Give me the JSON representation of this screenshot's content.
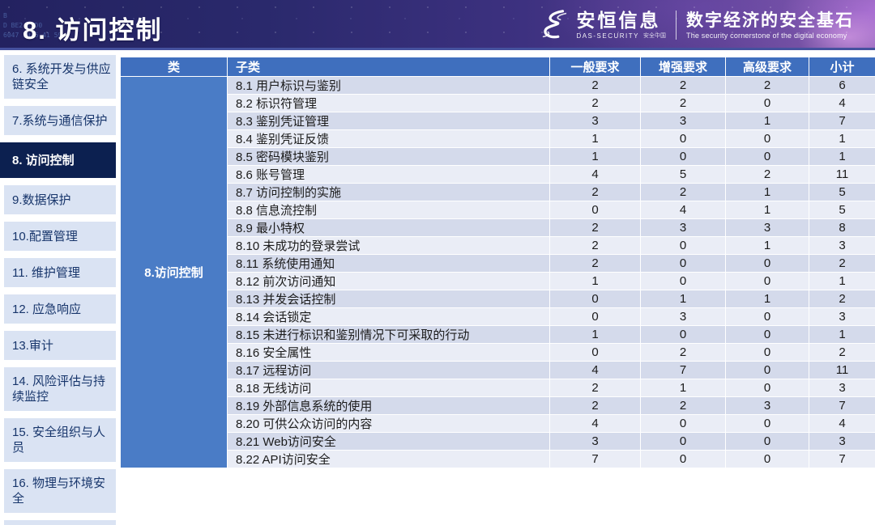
{
  "header": {
    "title": "8. 访问控制",
    "texture": {
      "line1": "B",
      "line2": "D BE2 F3D0",
      "line3": "6047 5926 41 59"
    },
    "logo": {
      "name_cn": "安恒信息",
      "name_en": "DAS-SECURITY",
      "seal": "安全中国",
      "tagline_cn": "数字经济的安全基石",
      "tagline_en": "The security cornerstone of the digital economy"
    }
  },
  "sidebar": {
    "items": [
      {
        "label": "6. 系统开发与供应链安全",
        "active": false
      },
      {
        "label": "7.系统与通信保护",
        "active": false
      },
      {
        "label": "8. 访问控制",
        "active": true
      },
      {
        "label": "9.数据保护",
        "active": false
      },
      {
        "label": "10.配置管理",
        "active": false
      },
      {
        "label": "11. 维护管理",
        "active": false
      },
      {
        "label": "12. 应急响应",
        "active": false
      },
      {
        "label": "13.审计",
        "active": false
      },
      {
        "label": "14. 风险评估与持续监控",
        "active": false
      },
      {
        "label": "15. 安全组织与人员",
        "active": false
      },
      {
        "label": "16. 物理与环境安全",
        "active": false
      }
    ]
  },
  "table": {
    "columns": [
      "类",
      "子类",
      "一般要求",
      "增强要求",
      "高级要求",
      "小计"
    ],
    "category": "8.访问控制",
    "rows": [
      {
        "name": "8.1 用户标识与鉴别",
        "general": 2,
        "enhanced": 2,
        "advanced": 2,
        "subtotal": 6
      },
      {
        "name": "8.2 标识符管理",
        "general": 2,
        "enhanced": 2,
        "advanced": 0,
        "subtotal": 4
      },
      {
        "name": "8.3 鉴别凭证管理",
        "general": 3,
        "enhanced": 3,
        "advanced": 1,
        "subtotal": 7
      },
      {
        "name": "8.4 鉴别凭证反馈",
        "general": 1,
        "enhanced": 0,
        "advanced": 0,
        "subtotal": 1
      },
      {
        "name": "8.5 密码模块鉴别",
        "general": 1,
        "enhanced": 0,
        "advanced": 0,
        "subtotal": 1
      },
      {
        "name": "8.6 账号管理",
        "general": 4,
        "enhanced": 5,
        "advanced": 2,
        "subtotal": 11
      },
      {
        "name": "8.7 访问控制的实施",
        "general": 2,
        "enhanced": 2,
        "advanced": 1,
        "subtotal": 5
      },
      {
        "name": "8.8 信息流控制",
        "general": 0,
        "enhanced": 4,
        "advanced": 1,
        "subtotal": 5
      },
      {
        "name": "8.9 最小特权",
        "general": 2,
        "enhanced": 3,
        "advanced": 3,
        "subtotal": 8
      },
      {
        "name": "8.10 未成功的登录尝试",
        "general": 2,
        "enhanced": 0,
        "advanced": 1,
        "subtotal": 3
      },
      {
        "name": "8.11 系统使用通知",
        "general": 2,
        "enhanced": 0,
        "advanced": 0,
        "subtotal": 2
      },
      {
        "name": "8.12 前次访问通知",
        "general": 1,
        "enhanced": 0,
        "advanced": 0,
        "subtotal": 1
      },
      {
        "name": "8.13 并发会话控制",
        "general": 0,
        "enhanced": 1,
        "advanced": 1,
        "subtotal": 2
      },
      {
        "name": "8.14 会话锁定",
        "general": 0,
        "enhanced": 3,
        "advanced": 0,
        "subtotal": 3
      },
      {
        "name": "8.15 未进行标识和鉴别情况下可采取的行动",
        "general": 1,
        "enhanced": 0,
        "advanced": 0,
        "subtotal": 1
      },
      {
        "name": "8.16 安全属性",
        "general": 0,
        "enhanced": 2,
        "advanced": 0,
        "subtotal": 2
      },
      {
        "name": "8.17 远程访问",
        "general": 4,
        "enhanced": 7,
        "advanced": 0,
        "subtotal": 11
      },
      {
        "name": "8.18 无线访问",
        "general": 2,
        "enhanced": 1,
        "advanced": 0,
        "subtotal": 3
      },
      {
        "name": "8.19 外部信息系统的使用",
        "general": 2,
        "enhanced": 2,
        "advanced": 3,
        "subtotal": 7
      },
      {
        "name": "8.20 可供公众访问的内容",
        "general": 4,
        "enhanced": 0,
        "advanced": 0,
        "subtotal": 4
      },
      {
        "name": "8.21 Web访问安全",
        "general": 3,
        "enhanced": 0,
        "advanced": 0,
        "subtotal": 3
      },
      {
        "name": "8.22 API访问安全",
        "general": 7,
        "enhanced": 0,
        "advanced": 0,
        "subtotal": 7
      }
    ]
  },
  "colors": {
    "accent_blue": "#3f6fbe",
    "category_blue": "#4a7cc6",
    "active_navy": "#0c2050",
    "sidebar_bg": "#dae3f3",
    "sidebar_text": "#17356b",
    "row_dark": "#d4daeb",
    "row_light": "#eaedf6",
    "banner_left": "#232260",
    "banner_right": "#8a5fb4"
  }
}
